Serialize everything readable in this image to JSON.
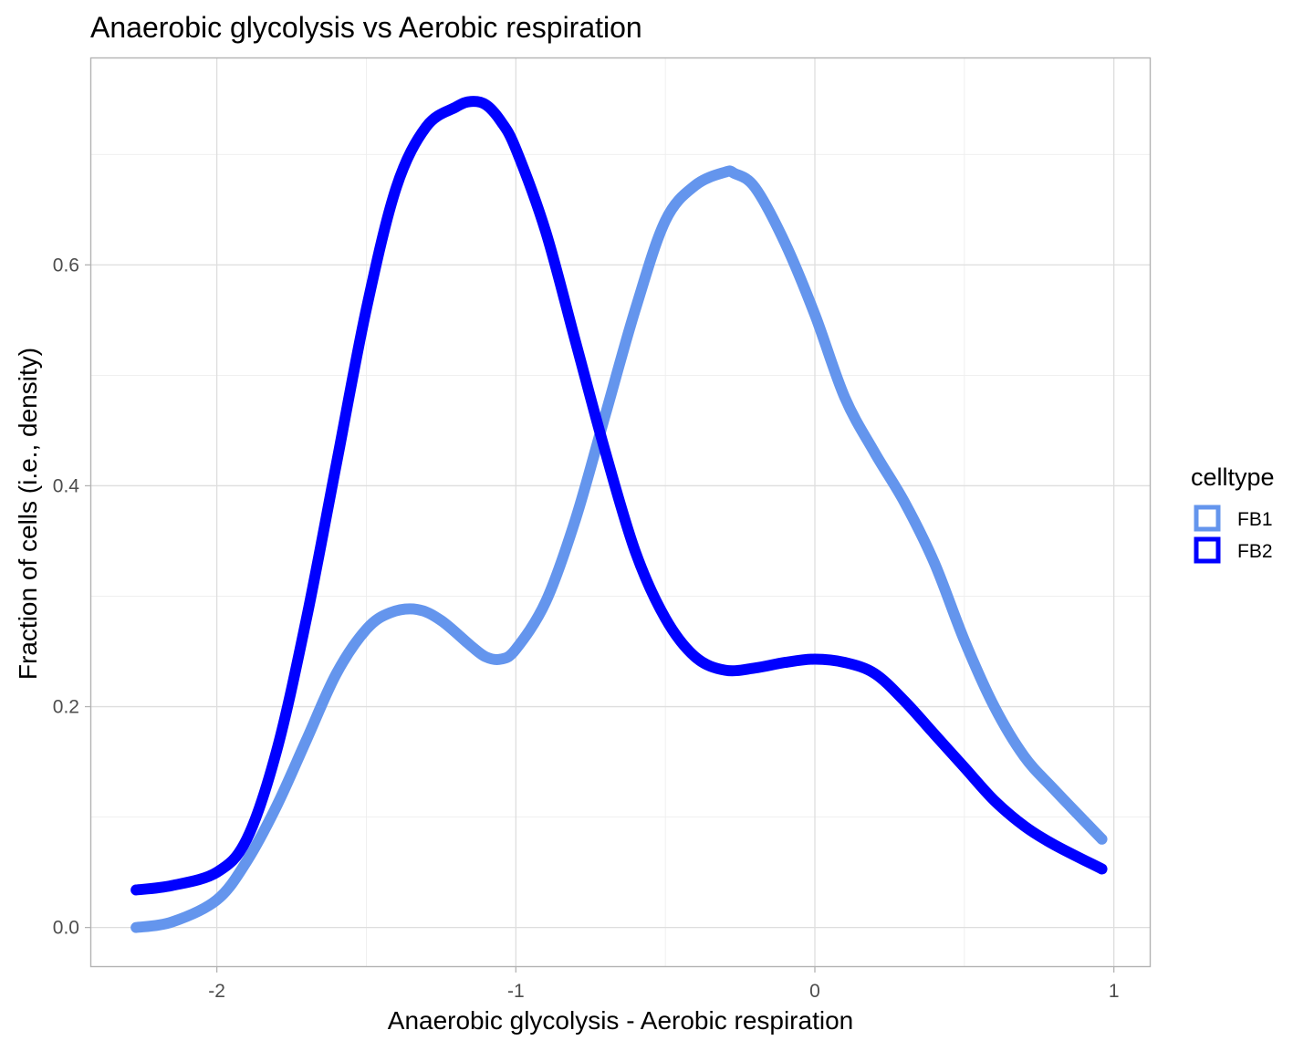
{
  "chart_data": {
    "type": "line",
    "title": "Anaerobic glycolysis vs Aerobic respiration",
    "xlabel": "Anaerobic glycolysis - Aerobic respiration",
    "ylabel": "Fraction of cells (i.e., density)",
    "xlim": [
      -2.42,
      1.12
    ],
    "ylim": [
      -0.035,
      0.787
    ],
    "x_ticks": [
      -2,
      -1,
      0,
      1
    ],
    "x_tick_labels": [
      "-2",
      "-1",
      "0",
      "1"
    ],
    "y_ticks": [
      0.0,
      0.2,
      0.4,
      0.6
    ],
    "y_tick_labels": [
      "0.0",
      "0.2",
      "0.4",
      "0.6"
    ],
    "grid": true,
    "legend": {
      "title": "celltype",
      "position": "right"
    },
    "series": [
      {
        "name": "FB1",
        "color": "#6495ED",
        "x": [
          -2.27,
          -2.15,
          -2.0,
          -1.9,
          -1.8,
          -1.7,
          -1.6,
          -1.5,
          -1.42,
          -1.33,
          -1.25,
          -1.15,
          -1.1,
          -1.05,
          -1.0,
          -0.9,
          -0.8,
          -0.7,
          -0.6,
          -0.5,
          -0.4,
          -0.3,
          -0.27,
          -0.2,
          -0.1,
          0.0,
          0.1,
          0.2,
          0.3,
          0.4,
          0.5,
          0.6,
          0.7,
          0.8,
          0.96
        ],
        "y": [
          0.0,
          0.005,
          0.025,
          0.06,
          0.11,
          0.17,
          0.23,
          0.27,
          0.285,
          0.288,
          0.278,
          0.255,
          0.245,
          0.243,
          0.252,
          0.295,
          0.37,
          0.465,
          0.56,
          0.64,
          0.672,
          0.684,
          0.683,
          0.67,
          0.62,
          0.555,
          0.48,
          0.43,
          0.385,
          0.33,
          0.26,
          0.2,
          0.155,
          0.125,
          0.08
        ]
      },
      {
        "name": "FB2",
        "color": "#0000FF",
        "x": [
          -2.27,
          -2.15,
          -2.0,
          -1.9,
          -1.8,
          -1.7,
          -1.6,
          -1.5,
          -1.4,
          -1.3,
          -1.2,
          -1.15,
          -1.1,
          -1.05,
          -1.0,
          -0.9,
          -0.8,
          -0.7,
          -0.6,
          -0.5,
          -0.4,
          -0.3,
          -0.2,
          -0.1,
          0.0,
          0.1,
          0.2,
          0.3,
          0.4,
          0.5,
          0.6,
          0.7,
          0.8,
          0.96
        ],
        "y": [
          0.034,
          0.038,
          0.05,
          0.08,
          0.16,
          0.28,
          0.42,
          0.56,
          0.67,
          0.725,
          0.743,
          0.748,
          0.745,
          0.73,
          0.705,
          0.63,
          0.53,
          0.43,
          0.34,
          0.28,
          0.245,
          0.233,
          0.235,
          0.24,
          0.243,
          0.24,
          0.23,
          0.205,
          0.175,
          0.145,
          0.115,
          0.092,
          0.075,
          0.053
        ]
      }
    ]
  }
}
